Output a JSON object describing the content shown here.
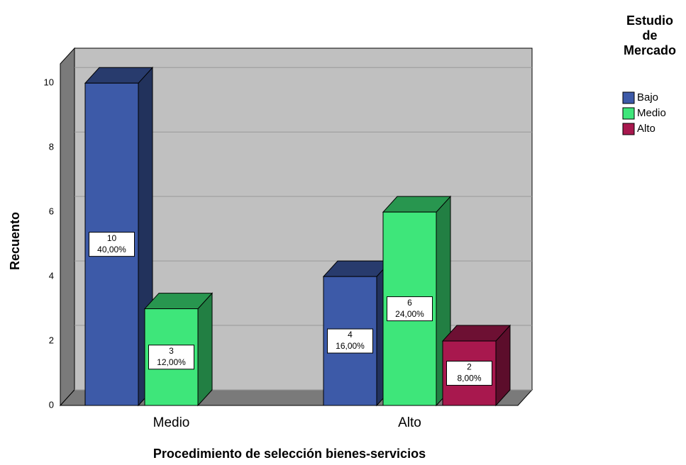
{
  "chart_data": {
    "type": "bar3d",
    "x_label": "Procedimiento de selección bienes-servicios",
    "y_label": "Recuento",
    "legend_title": [
      "Estudio",
      "de",
      "Mercado"
    ],
    "categories": [
      "Medio",
      "Alto"
    ],
    "series": [
      {
        "name": "Bajo",
        "color": "#3d5aa8",
        "values": [
          10,
          4
        ],
        "percent_labels": [
          "40,00%",
          "16,00%"
        ]
      },
      {
        "name": "Medio",
        "color": "#3ee67a",
        "values": [
          3,
          6
        ],
        "percent_labels": [
          "12,00%",
          "24,00%"
        ]
      },
      {
        "name": "Alto",
        "color": "#a8184e",
        "values": [
          null,
          2
        ],
        "percent_labels": [
          null,
          "8,00%"
        ]
      }
    ],
    "ylim": [
      0,
      10.6
    ],
    "yticks": [
      0,
      2,
      4,
      6,
      8,
      10
    ],
    "grid": true,
    "legend": "right"
  }
}
